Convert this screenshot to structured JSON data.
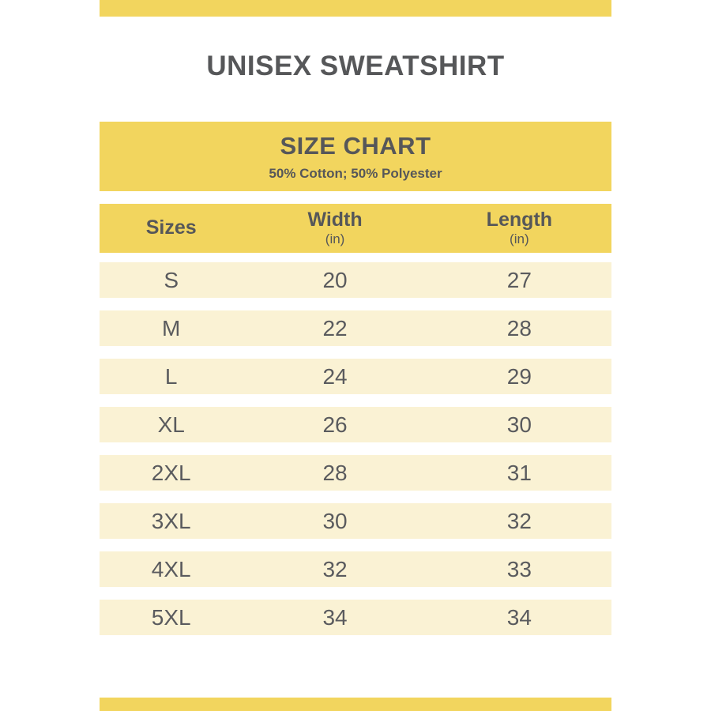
{
  "header": {
    "title": "UNISEX SWEATSHIRT"
  },
  "chart_data": {
    "type": "table",
    "title": "SIZE CHART",
    "subtitle": "50% Cotton; 50% Polyester",
    "columns": [
      {
        "label": "Sizes",
        "unit": ""
      },
      {
        "label": "Width",
        "unit": "(in)"
      },
      {
        "label": "Length",
        "unit": "(in)"
      }
    ],
    "rows": [
      {
        "size": "S",
        "width": 20,
        "length": 27
      },
      {
        "size": "M",
        "width": 22,
        "length": 28
      },
      {
        "size": "L",
        "width": 24,
        "length": 29
      },
      {
        "size": "XL",
        "width": 26,
        "length": 30
      },
      {
        "size": "2XL",
        "width": 28,
        "length": 31
      },
      {
        "size": "3XL",
        "width": 30,
        "length": 32
      },
      {
        "size": "4XL",
        "width": 32,
        "length": 33
      },
      {
        "size": "5XL",
        "width": 34,
        "length": 34
      }
    ]
  },
  "colors": {
    "accent_yellow": "#F2D55E",
    "row_cream": "#FAF2D4",
    "heading_text": "#565759",
    "body_text": "#5A5B5E"
  }
}
